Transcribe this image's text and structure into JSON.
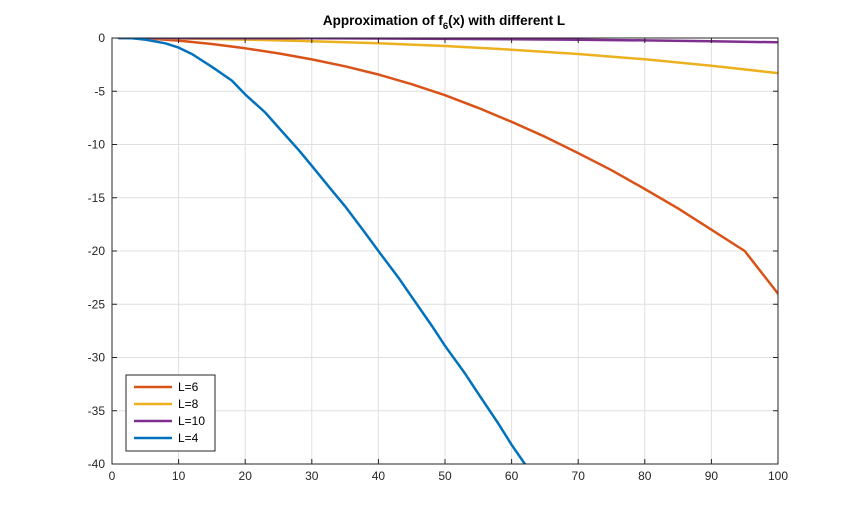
{
  "chart_data": {
    "type": "line",
    "title_main": "Approximation of f",
    "title_sub": "6",
    "title_rest": "(x) with different L",
    "xlabel": "",
    "ylabel": "",
    "xlim": [
      0,
      100
    ],
    "ylim": [
      -40,
      0
    ],
    "xticks": [
      0,
      10,
      20,
      30,
      40,
      50,
      60,
      70,
      80,
      90,
      100
    ],
    "yticks": [
      0,
      -5,
      -10,
      -15,
      -20,
      -25,
      -30,
      -35,
      -40
    ],
    "grid": true,
    "legend_position": "bottom-left",
    "series": [
      {
        "name": "L=6",
        "color": "#d95319",
        "x": [
          1,
          5,
          10,
          15,
          20,
          25,
          30,
          35,
          40,
          45,
          50,
          55,
          60,
          65,
          70,
          75,
          80,
          85,
          90,
          95,
          100
        ],
        "y": [
          0,
          -0.02,
          -0.24,
          -0.56,
          -0.97,
          -1.45,
          -2.01,
          -2.66,
          -3.43,
          -4.34,
          -5.37,
          -6.56,
          -7.87,
          -9.27,
          -10.81,
          -12.41,
          -14.18,
          -16.0,
          -18.0,
          -20.0,
          -24.0
        ]
      },
      {
        "name": "L=8",
        "color": "#edb120",
        "x": [
          1,
          10,
          20,
          30,
          40,
          50,
          60,
          70,
          80,
          90,
          100
        ],
        "y": [
          0,
          -0.05,
          -0.15,
          -0.3,
          -0.5,
          -0.75,
          -1.1,
          -1.5,
          -2.0,
          -2.6,
          -3.3
        ]
      },
      {
        "name": "L=10",
        "color": "#7e2f8e",
        "x": [
          1,
          10,
          20,
          30,
          40,
          50,
          60,
          70,
          80,
          90,
          100
        ],
        "y": [
          0,
          -0.01,
          -0.02,
          -0.03,
          -0.05,
          -0.08,
          -0.12,
          -0.17,
          -0.23,
          -0.31,
          -0.4
        ]
      },
      {
        "name": "L=4",
        "color": "#0072bd",
        "x": [
          1,
          3,
          5,
          8,
          10,
          12,
          15,
          18,
          20,
          23,
          25,
          28,
          30,
          33,
          35,
          38,
          40,
          43,
          45,
          48,
          50,
          53,
          55,
          58,
          60,
          62,
          64
        ],
        "y": [
          0,
          -0.02,
          -0.15,
          -0.5,
          -0.9,
          -1.5,
          -2.7,
          -4.0,
          -5.3,
          -7.0,
          -8.4,
          -10.5,
          -12.0,
          -14.3,
          -15.8,
          -18.3,
          -20.0,
          -22.5,
          -24.3,
          -27.0,
          -28.9,
          -31.5,
          -33.4,
          -36.2,
          -38.2,
          -40.0,
          -41.8
        ]
      }
    ]
  }
}
